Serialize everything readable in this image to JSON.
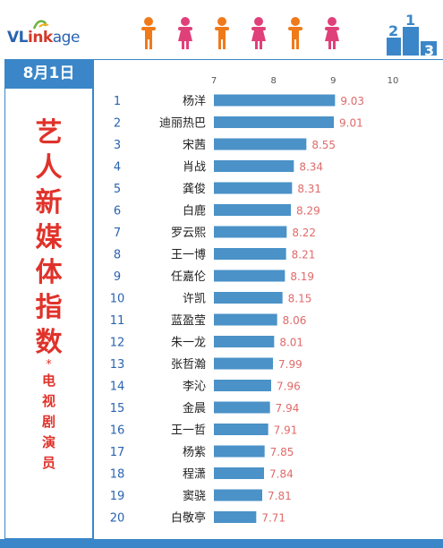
{
  "header": {
    "logo_prefix": "VL",
    "logo_ink": "ink",
    "logo_suffix": "age"
  },
  "sidebar": {
    "date": "8月1日",
    "title_big": [
      "艺",
      "人",
      "新",
      "媒",
      "体",
      "指",
      "数"
    ],
    "star": "*",
    "title_small": [
      "电",
      "视",
      "剧",
      "演",
      "员"
    ]
  },
  "colors": {
    "accent": "#3a86c8",
    "bar": "#4a92c8",
    "title_red": "#e0322a",
    "value_text": "#e06a6a",
    "person_orange": "#f07a1a",
    "person_pink": "#e0407a"
  },
  "chart_data": {
    "type": "bar",
    "orientation": "horizontal",
    "xlim": [
      7,
      10
    ],
    "xticks": [
      7,
      8,
      9,
      10
    ],
    "ranks": [
      "1",
      "2",
      "3",
      "4",
      "5",
      "6",
      "7",
      "8",
      "9",
      "10",
      "11",
      "12",
      "13",
      "14",
      "15",
      "16",
      "17",
      "18",
      "19",
      "20"
    ],
    "categories": [
      "杨洋",
      "迪丽热巴",
      "宋茜",
      "肖战",
      "龚俊",
      "白鹿",
      "罗云熙",
      "王一博",
      "任嘉伦",
      "许凯",
      "蓝盈莹",
      "朱一龙",
      "张哲瀚",
      "李沁",
      "金晨",
      "王一哲",
      "杨紫",
      "程潇",
      "窦骁",
      "白敬亭"
    ],
    "values": [
      9.03,
      9.01,
      8.55,
      8.34,
      8.31,
      8.29,
      8.22,
      8.21,
      8.19,
      8.15,
      8.06,
      8.01,
      7.99,
      7.96,
      7.94,
      7.91,
      7.85,
      7.84,
      7.81,
      7.71
    ],
    "value_labels": [
      "9.03",
      "9.01",
      "8.55",
      "8.34",
      "8.31",
      "8.29",
      "8.22",
      "8.21",
      "8.19",
      "8.15",
      "8.06",
      "8.01",
      "7.99",
      "7.96",
      "7.94",
      "7.91",
      "7.85",
      "7.84",
      "7.81",
      "7.71"
    ],
    "grid": false
  }
}
